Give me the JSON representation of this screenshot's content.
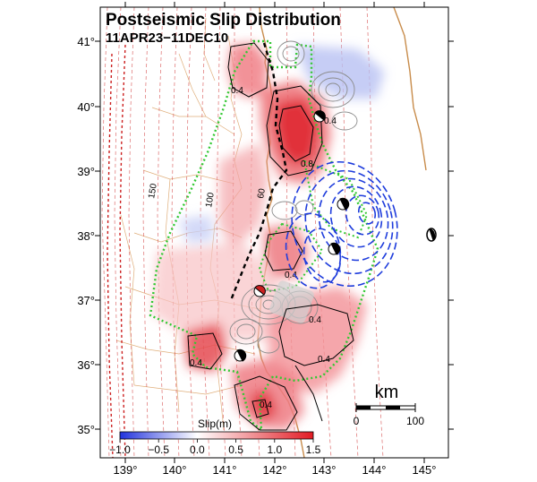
{
  "map": {
    "title": "Postseismic Slip Distribution",
    "subtitle": "11APR23−11DEC10",
    "lon_ticks": [
      "139°",
      "140°",
      "141°",
      "142°",
      "143°",
      "144°",
      "145°"
    ],
    "lat_ticks": [
      "41°",
      "40°",
      "39°",
      "38°",
      "37°",
      "36°",
      "35°"
    ],
    "lon_range": [
      138.5,
      145.5
    ],
    "lat_range": [
      34.6,
      41.5
    ],
    "contour_labels": [
      "0.4",
      "0.4",
      "0.8",
      "0.4",
      "0.4",
      "0.4",
      "0.4",
      "0.4"
    ],
    "depth_labels": [
      "150",
      "100",
      "60"
    ],
    "scale_bar": {
      "unit": "km",
      "labels": [
        "0",
        "100"
      ]
    },
    "colorbar": {
      "title": "Slip(m)",
      "ticks": [
        "−1.0",
        "−0.5",
        "0.0",
        "0.5",
        "1.0",
        "1.5"
      ],
      "range": [
        -1.0,
        1.5
      ]
    },
    "colors": {
      "positive_slip": "#e8323c",
      "negative_slip": "#3c50e6",
      "fault_outline": "#32c832",
      "coastline": "#c88c4b",
      "depth_contour": "#d23c3c",
      "aftershock_contour": "#8c8c8c"
    }
  }
}
